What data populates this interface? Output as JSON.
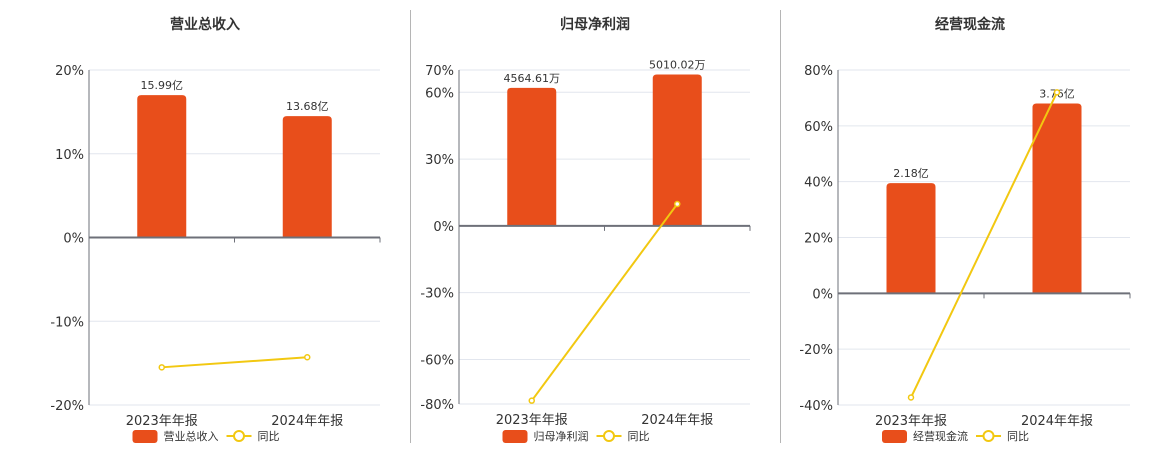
{
  "colors": {
    "bar": "#e84e1b",
    "line": "#f2c811",
    "grid": "#e2e6ee",
    "axis": "#6e7079",
    "divider": "#b5b5b5"
  },
  "legend": {
    "yoy_label": "同比"
  },
  "chart_data": [
    {
      "type": "bar+line",
      "title": "营业总收入",
      "categories": [
        "2023年年报",
        "2024年年报"
      ],
      "series": [
        {
          "name": "营业总收入",
          "type": "bar",
          "values": [
            17.0,
            14.5
          ],
          "labels": [
            "15.99亿",
            "13.68亿"
          ]
        },
        {
          "name": "同比",
          "type": "line",
          "values": [
            -15.5,
            -14.3
          ]
        }
      ],
      "yticks": [
        20,
        10,
        0,
        -10,
        -20
      ],
      "ytick_labels": [
        "20%",
        "10%",
        "0%",
        "-10%",
        "-20%"
      ],
      "ylim": [
        -20,
        20
      ],
      "layout": {
        "x0": 89,
        "x1": 380,
        "ytop": 70,
        "ybot": 405
      }
    },
    {
      "type": "bar+line",
      "title": "归母净利润",
      "categories": [
        "2023年年报",
        "2024年年报"
      ],
      "series": [
        {
          "name": "归母净利润",
          "type": "bar",
          "values": [
            62,
            68
          ],
          "labels": [
            "4564.61万",
            "5010.02万"
          ]
        },
        {
          "name": "同比",
          "type": "line",
          "values": [
            -78.5,
            9.8
          ]
        }
      ],
      "yticks": [
        70,
        60,
        30,
        0,
        -30,
        -60,
        -80
      ],
      "ytick_labels": [
        "70%",
        "60%",
        "30%",
        "0%",
        "-30%",
        "-60%",
        "-80%"
      ],
      "ylim": [
        -80,
        70
      ],
      "layout": {
        "x0": 459,
        "x1": 750,
        "ytop": 70,
        "ybot": 404
      }
    },
    {
      "type": "bar+line",
      "title": "经营现金流",
      "categories": [
        "2023年年报",
        "2024年年报"
      ],
      "series": [
        {
          "name": "经营现金流",
          "type": "bar",
          "values": [
            39.5,
            68
          ],
          "labels": [
            "2.18亿",
            "3.76亿"
          ]
        },
        {
          "name": "同比",
          "type": "line",
          "values": [
            -37.3,
            72
          ]
        }
      ],
      "yticks": [
        80,
        60,
        40,
        20,
        0,
        -20,
        -40
      ],
      "ytick_labels": [
        "80%",
        "60%",
        "40%",
        "20%",
        "0%",
        "-20%",
        "-40%"
      ],
      "ylim": [
        -40,
        80
      ],
      "layout": {
        "x0": 838,
        "x1": 1130,
        "ytop": 70,
        "ybot": 405
      }
    }
  ]
}
